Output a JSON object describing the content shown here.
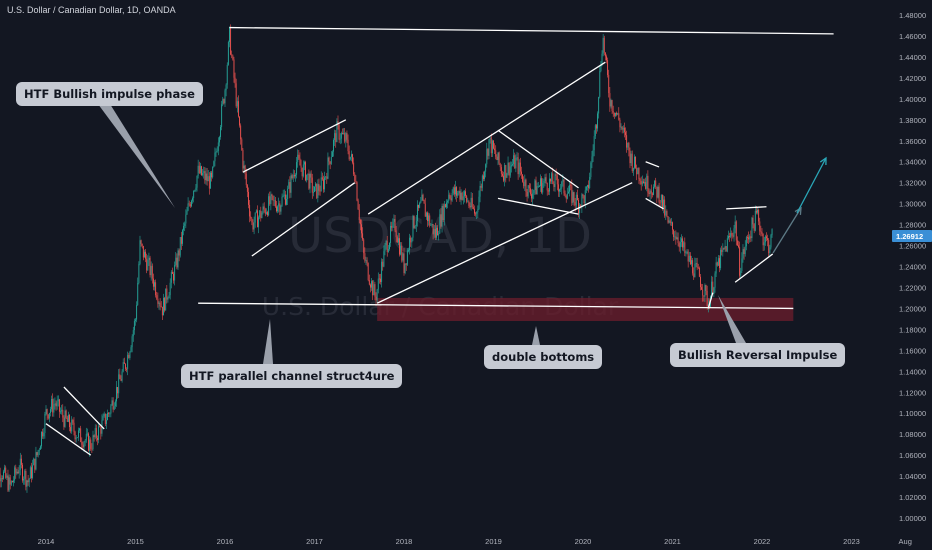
{
  "header": {
    "title": "U.S. Dollar / Canadian Dollar, 1D, OANDA"
  },
  "watermark": {
    "symbol": "USDCAD, 1D",
    "name": "U.S. Dollar / Canadian Dollar"
  },
  "annotations": {
    "impulse": "HTF Bullish impulse phase",
    "channel": "HTF parallel channel struct4ure",
    "double_bottoms": "double bottoms",
    "reversal": "Bullish Reversal Impulse"
  },
  "colors": {
    "background": "#131722",
    "up": "#26a69a",
    "down": "#ef5350",
    "lines": "#ffffff",
    "zone": "#6d1d2c",
    "arrow_teal": "#2aa7b8",
    "arrow_gray": "#5d7a86",
    "price_badge": "#3a8fd6"
  },
  "chart_data": {
    "type": "candlestick",
    "symbol": "USDCAD",
    "timeframe": "1D",
    "source": "OANDA",
    "x_ticks": [
      "2014",
      "2015",
      "2016",
      "2017",
      "2018",
      "2019",
      "2020",
      "2021",
      "2022",
      "2023",
      "Aug"
    ],
    "y_ticks": [
      "1.48000",
      "1.46000",
      "1.44000",
      "1.42000",
      "1.40000",
      "1.38000",
      "1.36000",
      "1.34000",
      "1.32000",
      "1.30000",
      "1.28000",
      "1.26000",
      "1.24000",
      "1.22000",
      "1.20000",
      "1.18000",
      "1.16000",
      "1.14000",
      "1.12000",
      "1.10000",
      "1.08000",
      "1.06000",
      "1.04000",
      "1.02000",
      "1.00000"
    ],
    "ylim": [
      0.99,
      1.49
    ],
    "last_price": "1.26912",
    "price_path": [
      [
        2013.4,
        1.03
      ],
      [
        2013.5,
        1.045
      ],
      [
        2013.6,
        1.03
      ],
      [
        2013.7,
        1.05
      ],
      [
        2013.8,
        1.035
      ],
      [
        2013.9,
        1.06
      ],
      [
        2014.0,
        1.1
      ],
      [
        2014.1,
        1.11
      ],
      [
        2014.2,
        1.095
      ],
      [
        2014.35,
        1.08
      ],
      [
        2014.5,
        1.07
      ],
      [
        2014.7,
        1.1
      ],
      [
        2014.9,
        1.15
      ],
      [
        2015.0,
        1.19
      ],
      [
        2015.05,
        1.26
      ],
      [
        2015.15,
        1.24
      ],
      [
        2015.3,
        1.2
      ],
      [
        2015.45,
        1.24
      ],
      [
        2015.6,
        1.3
      ],
      [
        2015.7,
        1.33
      ],
      [
        2015.85,
        1.32
      ],
      [
        2015.95,
        1.38
      ],
      [
        2016.0,
        1.41
      ],
      [
        2016.05,
        1.46
      ],
      [
        2016.1,
        1.42
      ],
      [
        2016.2,
        1.34
      ],
      [
        2016.3,
        1.28
      ],
      [
        2016.4,
        1.29
      ],
      [
        2016.5,
        1.3
      ],
      [
        2016.6,
        1.3
      ],
      [
        2016.7,
        1.31
      ],
      [
        2016.8,
        1.34
      ],
      [
        2016.9,
        1.33
      ],
      [
        2017.0,
        1.31
      ],
      [
        2017.1,
        1.32
      ],
      [
        2017.25,
        1.37
      ],
      [
        2017.35,
        1.36
      ],
      [
        2017.45,
        1.33
      ],
      [
        2017.55,
        1.25
      ],
      [
        2017.68,
        1.21
      ],
      [
        2017.8,
        1.26
      ],
      [
        2017.9,
        1.28
      ],
      [
        2018.0,
        1.24
      ],
      [
        2018.1,
        1.28
      ],
      [
        2018.2,
        1.3
      ],
      [
        2018.35,
        1.27
      ],
      [
        2018.5,
        1.31
      ],
      [
        2018.65,
        1.31
      ],
      [
        2018.8,
        1.29
      ],
      [
        2018.95,
        1.36
      ],
      [
        2019.1,
        1.33
      ],
      [
        2019.25,
        1.34
      ],
      [
        2019.4,
        1.31
      ],
      [
        2019.55,
        1.32
      ],
      [
        2019.7,
        1.32
      ],
      [
        2019.85,
        1.31
      ],
      [
        2019.95,
        1.3
      ],
      [
        2020.05,
        1.31
      ],
      [
        2020.15,
        1.38
      ],
      [
        2020.22,
        1.46
      ],
      [
        2020.3,
        1.4
      ],
      [
        2020.4,
        1.38
      ],
      [
        2020.55,
        1.34
      ],
      [
        2020.7,
        1.32
      ],
      [
        2020.85,
        1.31
      ],
      [
        2020.95,
        1.28
      ],
      [
        2021.05,
        1.27
      ],
      [
        2021.15,
        1.25
      ],
      [
        2021.3,
        1.23
      ],
      [
        2021.4,
        1.205
      ],
      [
        2021.5,
        1.24
      ],
      [
        2021.6,
        1.26
      ],
      [
        2021.7,
        1.28
      ],
      [
        2021.75,
        1.24
      ],
      [
        2021.85,
        1.27
      ],
      [
        2021.95,
        1.29
      ],
      [
        2022.0,
        1.27
      ],
      [
        2022.08,
        1.26
      ],
      [
        2022.12,
        1.27
      ]
    ],
    "drawings": [
      {
        "kind": "resistance",
        "from": [
          2016.05,
          1.468
        ],
        "to": [
          2022.8,
          1.462
        ]
      },
      {
        "kind": "channel-support",
        "from": [
          2015.7,
          1.205
        ],
        "to": [
          2022.35,
          1.2
        ]
      },
      {
        "kind": "demand-zone",
        "x": [
          2017.7,
          2022.35
        ],
        "y": [
          1.188,
          1.21
        ]
      }
    ],
    "grid": false,
    "legend": "none"
  }
}
